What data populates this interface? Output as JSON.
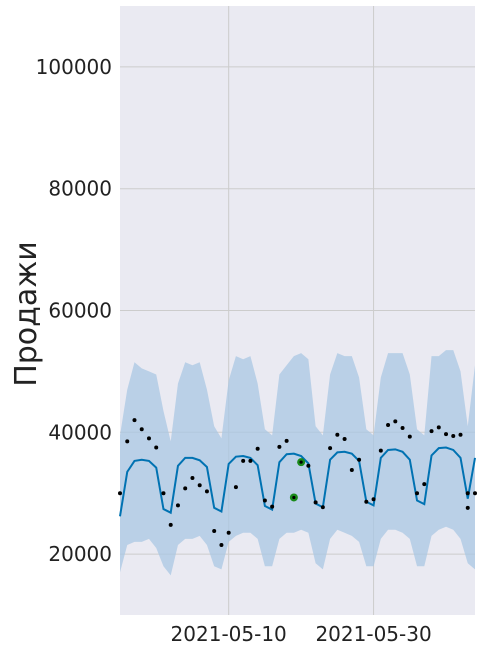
{
  "chart_data": {
    "type": "line",
    "title": "",
    "xlabel": "",
    "ylabel": "Продажи",
    "x_ticks": [
      "2021-05-10",
      "2021-05-30"
    ],
    "y_ticks": [
      "20000",
      "40000",
      "60000",
      "80000",
      "100000"
    ],
    "xlim": [
      "2021-04-25",
      "2021-06-13"
    ],
    "ylim": [
      10000,
      110000
    ],
    "grid": true,
    "colors": {
      "background": "#eaeaf2",
      "grid": "#cccccc",
      "forecast": "#0072b2",
      "interval": "#a9c7e3",
      "observed": "#000000",
      "highlight": "#1a8a1a"
    },
    "series": [
      {
        "type": "interval",
        "x": [
          "2021-04-25",
          "2021-04-26",
          "2021-04-27",
          "2021-04-28",
          "2021-04-29",
          "2021-04-30",
          "2021-05-01",
          "2021-05-02",
          "2021-05-03",
          "2021-05-04",
          "2021-05-05",
          "2021-05-06",
          "2021-05-07",
          "2021-05-08",
          "2021-05-09",
          "2021-05-10",
          "2021-05-11",
          "2021-05-12",
          "2021-05-13",
          "2021-05-14",
          "2021-05-15",
          "2021-05-16",
          "2021-05-17",
          "2021-05-18",
          "2021-05-19",
          "2021-05-20",
          "2021-05-21",
          "2021-05-22",
          "2021-05-23",
          "2021-05-24",
          "2021-05-25",
          "2021-05-26",
          "2021-05-27",
          "2021-05-28",
          "2021-05-29",
          "2021-05-30",
          "2021-05-31",
          "2021-06-01",
          "2021-06-02",
          "2021-06-03",
          "2021-06-04",
          "2021-06-05",
          "2021-06-06",
          "2021-06-07",
          "2021-06-08",
          "2021-06-09",
          "2021-06-10",
          "2021-06-11",
          "2021-06-12",
          "2021-06-13"
        ],
        "upper": [
          39500,
          47000,
          51500,
          50500,
          50000,
          49500,
          43500,
          38500,
          48000,
          51500,
          51000,
          51500,
          47000,
          41000,
          39000,
          48500,
          52500,
          52000,
          52500,
          48000,
          40500,
          39500,
          49500,
          51000,
          52500,
          53000,
          52000,
          41000,
          39500,
          49500,
          53000,
          52500,
          52500,
          49000,
          40500,
          39500,
          49000,
          53000,
          53000,
          53000,
          49500,
          40500,
          39500,
          52500,
          52500,
          53500,
          53500,
          50000,
          41000,
          51000
        ],
        "lower": [
          17000,
          21500,
          22000,
          22000,
          22500,
          21000,
          18000,
          16500,
          21500,
          22500,
          22500,
          23000,
          21500,
          18000,
          17500,
          22000,
          23000,
          23500,
          23500,
          22500,
          18000,
          18000,
          22500,
          23500,
          23500,
          24000,
          23500,
          18500,
          17500,
          22500,
          24000,
          23500,
          23000,
          22000,
          18000,
          18000,
          22500,
          24000,
          24000,
          23500,
          22500,
          18000,
          18000,
          23000,
          24000,
          24500,
          24000,
          22500,
          18500,
          17500
        ]
      },
      {
        "type": "forecast-line",
        "x": [
          "2021-04-25",
          "2021-04-26",
          "2021-04-27",
          "2021-04-28",
          "2021-04-29",
          "2021-04-30",
          "2021-05-01",
          "2021-05-02",
          "2021-05-03",
          "2021-05-04",
          "2021-05-05",
          "2021-05-06",
          "2021-05-07",
          "2021-05-08",
          "2021-05-09",
          "2021-05-10",
          "2021-05-11",
          "2021-05-12",
          "2021-05-13",
          "2021-05-14",
          "2021-05-15",
          "2021-05-16",
          "2021-05-17",
          "2021-05-18",
          "2021-05-19",
          "2021-05-20",
          "2021-05-21",
          "2021-05-22",
          "2021-05-23",
          "2021-05-24",
          "2021-05-25",
          "2021-05-26",
          "2021-05-27",
          "2021-05-28",
          "2021-05-29",
          "2021-05-30",
          "2021-05-31",
          "2021-06-01",
          "2021-06-02",
          "2021-06-03",
          "2021-06-04",
          "2021-06-05",
          "2021-06-06",
          "2021-06-07",
          "2021-06-08",
          "2021-06-09",
          "2021-06-10",
          "2021-06-11",
          "2021-06-12",
          "2021-06-13"
        ],
        "values": [
          26200,
          33500,
          35300,
          35500,
          35300,
          34200,
          27400,
          26800,
          34500,
          35800,
          35800,
          35400,
          34300,
          27600,
          27000,
          34800,
          36000,
          36100,
          35800,
          34600,
          27900,
          27300,
          35100,
          36400,
          36500,
          36100,
          34900,
          28300,
          27700,
          35500,
          36700,
          36800,
          36500,
          35300,
          28600,
          28000,
          35800,
          37100,
          37200,
          36800,
          35500,
          28800,
          28200,
          36200,
          37400,
          37500,
          37100,
          35800,
          29100,
          35800
        ]
      },
      {
        "type": "observed",
        "points": [
          [
            "2021-04-25",
            30000
          ],
          [
            "2021-04-26",
            38500
          ],
          [
            "2021-04-27",
            42000
          ],
          [
            "2021-04-28",
            40500
          ],
          [
            "2021-04-29",
            39000
          ],
          [
            "2021-04-30",
            37500
          ],
          [
            "2021-05-01",
            30000
          ],
          [
            "2021-05-02",
            24800
          ],
          [
            "2021-05-03",
            28000
          ],
          [
            "2021-05-04",
            30800
          ],
          [
            "2021-05-05",
            32500
          ],
          [
            "2021-05-06",
            31300
          ],
          [
            "2021-05-07",
            30300
          ],
          [
            "2021-05-08",
            23800
          ],
          [
            "2021-05-09",
            21500
          ],
          [
            "2021-05-10",
            23500
          ],
          [
            "2021-05-11",
            31000
          ],
          [
            "2021-05-12",
            35300
          ],
          [
            "2021-05-13",
            35300
          ],
          [
            "2021-05-14",
            37300
          ],
          [
            "2021-05-15",
            28800
          ],
          [
            "2021-05-16",
            27800
          ],
          [
            "2021-05-17",
            37600
          ],
          [
            "2021-05-18",
            38600
          ],
          [
            "2021-05-20",
            34800
          ],
          [
            "2021-05-21",
            34500
          ],
          [
            "2021-05-22",
            28500
          ],
          [
            "2021-05-23",
            27700
          ],
          [
            "2021-05-24",
            37400
          ],
          [
            "2021-05-25",
            39600
          ],
          [
            "2021-05-26",
            38900
          ],
          [
            "2021-05-27",
            33800
          ],
          [
            "2021-05-28",
            35500
          ],
          [
            "2021-05-29",
            28600
          ],
          [
            "2021-05-30",
            29000
          ],
          [
            "2021-05-31",
            37000
          ],
          [
            "2021-06-01",
            41200
          ],
          [
            "2021-06-02",
            41800
          ],
          [
            "2021-06-03",
            40700
          ],
          [
            "2021-06-04",
            39300
          ],
          [
            "2021-06-05",
            30000
          ],
          [
            "2021-06-06",
            31500
          ],
          [
            "2021-06-07",
            40200
          ],
          [
            "2021-06-08",
            40800
          ],
          [
            "2021-06-09",
            39700
          ],
          [
            "2021-06-10",
            39400
          ],
          [
            "2021-06-11",
            39600
          ],
          [
            "2021-06-12",
            30000
          ],
          [
            "2021-06-12",
            27600
          ],
          [
            "2021-06-13",
            30000
          ]
        ]
      },
      {
        "type": "highlight",
        "points": [
          [
            "2021-05-19",
            29300
          ],
          [
            "2021-05-20",
            35100
          ]
        ]
      }
    ]
  }
}
